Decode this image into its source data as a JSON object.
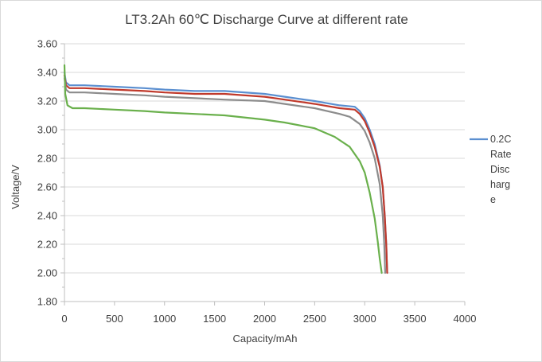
{
  "chart_data": {
    "type": "line",
    "title": "LT3.2Ah 60℃ Discharge Curve at different rate",
    "xlabel": "Capacity/mAh",
    "ylabel": "Voltage/V",
    "xlim": [
      0,
      4000
    ],
    "ylim": [
      1.8,
      3.6
    ],
    "x_ticks": [
      "0",
      "500",
      "1000",
      "1500",
      "2000",
      "2500",
      "3000",
      "3500",
      "4000"
    ],
    "y_ticks": [
      "1.80",
      "2.00",
      "2.20",
      "2.40",
      "2.60",
      "2.80",
      "3.00",
      "3.20",
      "3.40",
      "3.60"
    ],
    "grid": "horizontal",
    "legend": {
      "position": "right",
      "lines": [
        "0.2C",
        "Rate",
        "Disc",
        "harg",
        "e"
      ]
    },
    "series": [
      {
        "name": "0.2C Rate Discharge",
        "color": "#5b8fd0",
        "points": [
          [
            0,
            3.4
          ],
          [
            15,
            3.33
          ],
          [
            50,
            3.31
          ],
          [
            200,
            3.31
          ],
          [
            500,
            3.3
          ],
          [
            800,
            3.29
          ],
          [
            1000,
            3.28
          ],
          [
            1300,
            3.27
          ],
          [
            1600,
            3.27
          ],
          [
            2000,
            3.25
          ],
          [
            2200,
            3.23
          ],
          [
            2500,
            3.2
          ],
          [
            2750,
            3.17
          ],
          [
            2900,
            3.16
          ],
          [
            2950,
            3.13
          ],
          [
            3000,
            3.08
          ],
          [
            3050,
            3.0
          ],
          [
            3100,
            2.9
          ],
          [
            3150,
            2.75
          ],
          [
            3180,
            2.6
          ],
          [
            3200,
            2.4
          ],
          [
            3215,
            2.2
          ],
          [
            3225,
            2.0
          ]
        ]
      },
      {
        "color": "#c0392b",
        "points": [
          [
            0,
            3.38
          ],
          [
            15,
            3.31
          ],
          [
            50,
            3.29
          ],
          [
            200,
            3.29
          ],
          [
            500,
            3.28
          ],
          [
            800,
            3.27
          ],
          [
            1000,
            3.26
          ],
          [
            1300,
            3.25
          ],
          [
            1600,
            3.25
          ],
          [
            2000,
            3.23
          ],
          [
            2200,
            3.21
          ],
          [
            2500,
            3.18
          ],
          [
            2750,
            3.15
          ],
          [
            2900,
            3.14
          ],
          [
            2950,
            3.11
          ],
          [
            3000,
            3.06
          ],
          [
            3050,
            2.98
          ],
          [
            3100,
            2.88
          ],
          [
            3150,
            2.74
          ],
          [
            3180,
            2.6
          ],
          [
            3200,
            2.4
          ],
          [
            3215,
            2.2
          ],
          [
            3225,
            2.0
          ]
        ]
      },
      {
        "color": "#8c8c8c",
        "points": [
          [
            0,
            3.36
          ],
          [
            15,
            3.28
          ],
          [
            50,
            3.26
          ],
          [
            200,
            3.26
          ],
          [
            500,
            3.25
          ],
          [
            800,
            3.24
          ],
          [
            1000,
            3.23
          ],
          [
            1300,
            3.22
          ],
          [
            1600,
            3.21
          ],
          [
            2000,
            3.2
          ],
          [
            2200,
            3.18
          ],
          [
            2500,
            3.15
          ],
          [
            2750,
            3.11
          ],
          [
            2850,
            3.09
          ],
          [
            2950,
            3.04
          ],
          [
            3000,
            2.99
          ],
          [
            3050,
            2.91
          ],
          [
            3100,
            2.8
          ],
          [
            3150,
            2.62
          ],
          [
            3180,
            2.4
          ],
          [
            3195,
            2.2
          ],
          [
            3205,
            2.0
          ]
        ]
      },
      {
        "color": "#6ab04c",
        "points": [
          [
            0,
            3.45
          ],
          [
            8,
            3.25
          ],
          [
            30,
            3.17
          ],
          [
            80,
            3.15
          ],
          [
            200,
            3.15
          ],
          [
            500,
            3.14
          ],
          [
            800,
            3.13
          ],
          [
            1000,
            3.12
          ],
          [
            1300,
            3.11
          ],
          [
            1600,
            3.1
          ],
          [
            2000,
            3.07
          ],
          [
            2200,
            3.05
          ],
          [
            2500,
            3.01
          ],
          [
            2700,
            2.95
          ],
          [
            2850,
            2.88
          ],
          [
            2950,
            2.78
          ],
          [
            3000,
            2.7
          ],
          [
            3050,
            2.56
          ],
          [
            3100,
            2.38
          ],
          [
            3130,
            2.22
          ],
          [
            3150,
            2.1
          ],
          [
            3170,
            2.0
          ]
        ]
      }
    ]
  }
}
